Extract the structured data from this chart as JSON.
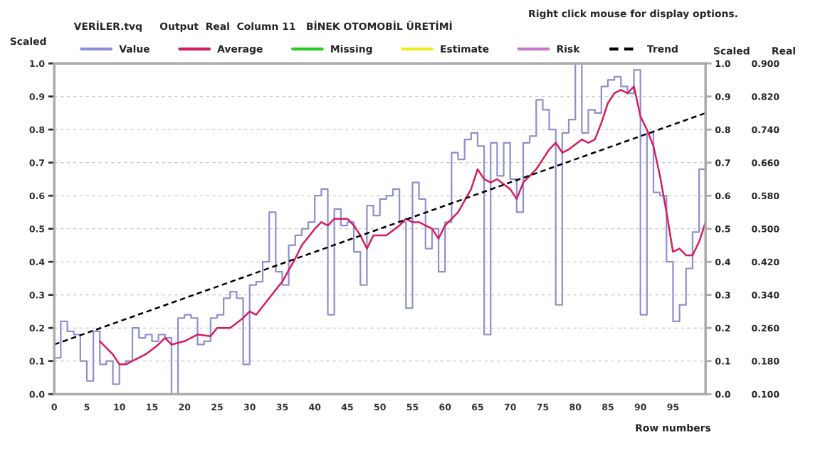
{
  "chart_data": {
    "type": "line",
    "title": "VERİLER.tvq     Output  Real  Column 11   BİNEK OTOMOBİL ÜRETİMİ",
    "annotations": [
      "Right click mouse for display options."
    ],
    "xlabel": "Row numbers",
    "ylabel": "Scaled",
    "y2label": "Scaled",
    "y3label": "Real",
    "xlim": [
      0,
      100
    ],
    "xticks": [
      0,
      5,
      10,
      15,
      20,
      25,
      30,
      35,
      40,
      45,
      50,
      55,
      60,
      65,
      70,
      75,
      80,
      85,
      90,
      95
    ],
    "ylim": [
      0,
      1
    ],
    "yticks": [
      {
        "value": 0,
        "label": "0.0"
      },
      {
        "value": 0.1,
        "label": "0.1"
      },
      {
        "value": 0.2,
        "label": "0.2"
      },
      {
        "value": 0.3,
        "label": "0.3"
      },
      {
        "value": 0.4,
        "label": "0.4"
      },
      {
        "value": 0.5,
        "label": "0.5"
      },
      {
        "value": 0.6,
        "label": "0.6"
      },
      {
        "value": 0.7,
        "label": "0.7"
      },
      {
        "value": 0.8,
        "label": "0.8"
      },
      {
        "value": 0.9,
        "label": "0.9"
      },
      {
        "value": 1,
        "label": "1.0"
      }
    ],
    "y2lim": [
      0,
      1
    ],
    "y2ticks": [
      {
        "value": 0,
        "label": "0.0"
      },
      {
        "value": 0.1,
        "label": "0.1"
      },
      {
        "value": 0.2,
        "label": "0.2"
      },
      {
        "value": 0.3,
        "label": "0.3"
      },
      {
        "value": 0.4,
        "label": "0.4"
      },
      {
        "value": 0.5,
        "label": "0.5"
      },
      {
        "value": 0.6,
        "label": "0.6"
      },
      {
        "value": 0.7,
        "label": "0.7"
      },
      {
        "value": 0.8,
        "label": "0.8"
      },
      {
        "value": 0.9,
        "label": "0.9"
      },
      {
        "value": 1,
        "label": "1.0"
      }
    ],
    "y3lim": [
      0.1,
      0.9
    ],
    "y3ticks": [
      {
        "value": 0.1,
        "label": "0.100"
      },
      {
        "value": 0.18,
        "label": "0.180"
      },
      {
        "value": 0.26,
        "label": "0.260"
      },
      {
        "value": 0.34,
        "label": "0.340"
      },
      {
        "value": 0.42,
        "label": "0.420"
      },
      {
        "value": 0.5,
        "label": "0.500"
      },
      {
        "value": 0.58,
        "label": "0.580"
      },
      {
        "value": 0.66,
        "label": "0.660"
      },
      {
        "value": 0.74,
        "label": "0.740"
      },
      {
        "value": 0.82,
        "label": "0.820"
      },
      {
        "value": 0.9,
        "label": "0.900"
      }
    ],
    "grid": "y",
    "legend": "top",
    "series": [
      {
        "name": "Value",
        "type": "step",
        "color": "#8f8fd0",
        "x": [
          0,
          1,
          2,
          3,
          4,
          5,
          6,
          7,
          8,
          9,
          10,
          11,
          12,
          13,
          14,
          15,
          16,
          17,
          18,
          19,
          20,
          21,
          22,
          23,
          24,
          25,
          26,
          27,
          28,
          29,
          30,
          31,
          32,
          33,
          34,
          35,
          36,
          37,
          38,
          39,
          40,
          41,
          42,
          43,
          44,
          45,
          46,
          47,
          48,
          49,
          50,
          51,
          52,
          53,
          54,
          55,
          56,
          57,
          58,
          59,
          60,
          61,
          62,
          63,
          64,
          65,
          66,
          67,
          68,
          69,
          70,
          71,
          72,
          73,
          74,
          75,
          76,
          77,
          78,
          79,
          80,
          81,
          82,
          83,
          84,
          85,
          86,
          87,
          88,
          89,
          90,
          91,
          92,
          93,
          94,
          95,
          96,
          97,
          98,
          99,
          100
        ],
        "values": [
          0.11,
          0.22,
          0.19,
          0.18,
          0.1,
          0.04,
          0.19,
          0.09,
          0.1,
          0.03,
          0.09,
          0.1,
          0.2,
          0.17,
          0.18,
          0.16,
          0.18,
          0.17,
          0.0,
          0.23,
          0.24,
          0.23,
          0.15,
          0.16,
          0.23,
          0.24,
          0.29,
          0.31,
          0.29,
          0.09,
          0.33,
          0.34,
          0.4,
          0.55,
          0.37,
          0.33,
          0.45,
          0.48,
          0.5,
          0.52,
          0.6,
          0.62,
          0.24,
          0.56,
          0.51,
          0.52,
          0.43,
          0.33,
          0.57,
          0.54,
          0.59,
          0.6,
          0.62,
          0.52,
          0.26,
          0.64,
          0.59,
          0.44,
          0.5,
          0.37,
          0.52,
          0.73,
          0.71,
          0.77,
          0.79,
          0.75,
          0.18,
          0.76,
          0.66,
          0.76,
          0.65,
          0.55,
          0.76,
          0.78,
          0.89,
          0.86,
          0.8,
          0.27,
          0.79,
          0.83,
          1.0,
          0.79,
          0.86,
          0.85,
          0.93,
          0.95,
          0.96,
          0.93,
          0.91,
          0.98,
          0.24,
          0.79,
          0.61,
          0.6,
          0.4,
          0.22,
          0.27,
          0.38,
          0.49,
          0.68,
          0.75
        ]
      },
      {
        "name": "Average",
        "color": "#d81b60",
        "x": [
          7,
          8,
          9,
          10,
          11,
          12,
          14,
          16,
          17,
          18,
          20,
          22,
          24,
          25,
          27,
          29,
          30,
          31,
          33,
          35,
          37,
          38,
          40,
          41,
          42,
          43,
          45,
          46,
          47,
          48,
          49,
          51,
          53,
          54,
          55,
          56,
          58,
          59,
          60,
          62,
          64,
          65,
          66,
          67,
          68,
          70,
          71,
          72,
          73,
          74,
          76,
          77,
          78,
          79,
          81,
          82,
          83,
          84,
          85,
          86,
          87,
          88,
          89,
          90,
          91,
          92,
          93,
          94,
          95,
          96,
          97,
          98,
          99,
          100
        ],
        "values": [
          0.16,
          0.14,
          0.12,
          0.09,
          0.09,
          0.1,
          0.12,
          0.15,
          0.17,
          0.15,
          0.16,
          0.18,
          0.175,
          0.2,
          0.2,
          0.23,
          0.25,
          0.24,
          0.29,
          0.34,
          0.41,
          0.45,
          0.5,
          0.52,
          0.51,
          0.53,
          0.53,
          0.51,
          0.48,
          0.44,
          0.48,
          0.48,
          0.51,
          0.53,
          0.52,
          0.52,
          0.5,
          0.47,
          0.51,
          0.55,
          0.62,
          0.68,
          0.65,
          0.64,
          0.65,
          0.62,
          0.59,
          0.64,
          0.66,
          0.68,
          0.74,
          0.76,
          0.73,
          0.74,
          0.77,
          0.76,
          0.77,
          0.82,
          0.88,
          0.91,
          0.92,
          0.91,
          0.93,
          0.84,
          0.8,
          0.75,
          0.66,
          0.55,
          0.43,
          0.44,
          0.42,
          0.42,
          0.46,
          0.52
        ]
      },
      {
        "name": "Missing",
        "color": "#22cc22"
      },
      {
        "name": "Estimate",
        "color": "#eeee22"
      },
      {
        "name": "Risk",
        "color": "#c878c8",
        "x": [
          0,
          100
        ],
        "values": [
          0,
          0
        ]
      },
      {
        "name": "Trend",
        "color": "#000000",
        "line_style": "dashed",
        "x": [
          0,
          100
        ],
        "values": [
          0.15,
          0.85
        ]
      }
    ]
  }
}
